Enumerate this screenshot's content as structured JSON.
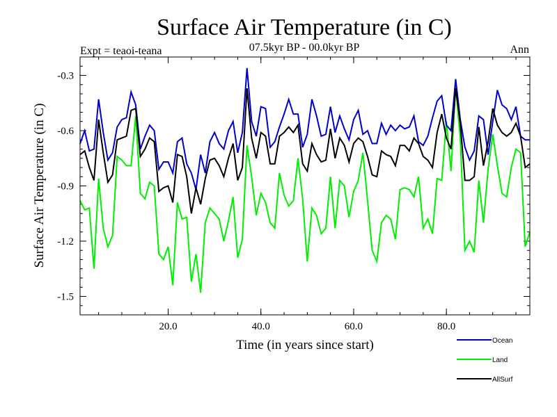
{
  "chart_data": {
    "type": "line",
    "title": "Surface Air Temperature (in C)",
    "subtitle": "07.5kyr BP - 00.0kyr BP",
    "left_label": "Expt = teaoi-teana",
    "right_label": "Ann",
    "xlabel": "Time (in years since start)",
    "ylabel": "Surface Air Temperature (in C)",
    "xlim": [
      1,
      98
    ],
    "ylim": [
      -1.6,
      -0.2
    ],
    "xticks": [
      20,
      40,
      60,
      80
    ],
    "xtick_labels": [
      "20.0",
      "40.0",
      "60.0",
      "80.0"
    ],
    "yticks": [
      -1.5,
      -1.2,
      -0.9,
      -0.6,
      -0.3
    ],
    "ytick_labels": [
      "-1.5",
      "-1.2",
      "-0.9",
      "-0.6",
      "-0.3"
    ],
    "legend_position": "bottom-right",
    "series": [
      {
        "name": "Ocean",
        "color": "#0000cc",
        "values": [
          -0.67,
          -0.6,
          -0.71,
          -0.7,
          -0.43,
          -0.61,
          -0.76,
          -0.72,
          -0.58,
          -0.54,
          -0.53,
          -0.39,
          -0.46,
          -0.7,
          -0.63,
          -0.57,
          -0.6,
          -0.81,
          -0.77,
          -0.77,
          -0.83,
          -0.66,
          -0.64,
          -0.78,
          -0.83,
          -0.92,
          -0.73,
          -0.83,
          -0.66,
          -0.61,
          -0.67,
          -0.7,
          -0.6,
          -0.55,
          -0.72,
          -0.61,
          -0.26,
          -0.55,
          -0.63,
          -0.47,
          -0.48,
          -0.69,
          -0.66,
          -0.58,
          -0.51,
          -0.43,
          -0.51,
          -0.51,
          -0.69,
          -0.62,
          -0.43,
          -0.52,
          -0.63,
          -0.62,
          -0.47,
          -0.61,
          -0.52,
          -0.59,
          -0.65,
          -0.54,
          -0.49,
          -0.62,
          -0.6,
          -0.67,
          -0.67,
          -0.56,
          -0.62,
          -0.57,
          -0.6,
          -0.57,
          -0.59,
          -0.58,
          -0.52,
          -0.66,
          -0.68,
          -0.63,
          -0.53,
          -0.44,
          -0.41,
          -0.57,
          -0.6,
          -0.32,
          -0.54,
          -0.69,
          -0.76,
          -0.71,
          -0.52,
          -0.54,
          -0.73,
          -0.55,
          -0.38,
          -0.46,
          -0.48,
          -0.54,
          -0.47,
          -0.63,
          -0.65,
          -0.65
        ]
      },
      {
        "name": "Land",
        "color": "#00ee00",
        "values": [
          -0.98,
          -1.03,
          -1.02,
          -1.35,
          -0.86,
          -1.13,
          -1.23,
          -1.17,
          -0.74,
          -0.76,
          -0.79,
          -0.79,
          -0.52,
          -0.94,
          -0.97,
          -0.88,
          -0.9,
          -1.27,
          -1.3,
          -1.23,
          -1.44,
          -0.99,
          -1.08,
          -1.07,
          -1.42,
          -1.27,
          -1.48,
          -1.1,
          -1.02,
          -1.05,
          -1.08,
          -1.2,
          -1.09,
          -0.96,
          -1.29,
          -1.19,
          -0.68,
          -0.85,
          -1.06,
          -0.94,
          -0.99,
          -1.1,
          -1.13,
          -0.83,
          -0.95,
          -1.01,
          -0.98,
          -0.75,
          -0.97,
          -1.31,
          -1.02,
          -1.06,
          -1.16,
          -1.13,
          -0.85,
          -1.13,
          -0.87,
          -0.9,
          -1.07,
          -0.93,
          -0.87,
          -0.72,
          -0.98,
          -1.25,
          -1.31,
          -1.1,
          -1.06,
          -1.08,
          -1.19,
          -0.92,
          -0.91,
          -0.92,
          -0.96,
          -0.85,
          -1.13,
          -1.08,
          -1.16,
          -0.86,
          -0.87,
          -0.55,
          -0.82,
          -0.36,
          -0.64,
          -1.25,
          -1.2,
          -1.26,
          -0.87,
          -1.1,
          -0.81,
          -0.62,
          -0.79,
          -0.94,
          -0.96,
          -0.8,
          -0.7,
          -0.72,
          -1.23,
          -1.15
        ]
      },
      {
        "name": "AllSurf",
        "color": "#000000",
        "values": [
          -0.73,
          -0.71,
          -0.8,
          -0.87,
          -0.54,
          -0.72,
          -0.88,
          -0.84,
          -0.65,
          -0.64,
          -0.63,
          -0.49,
          -0.48,
          -0.74,
          -0.7,
          -0.64,
          -0.66,
          -0.93,
          -0.91,
          -0.9,
          -0.99,
          -0.73,
          -0.74,
          -0.85,
          -1.05,
          -0.91,
          -1.0,
          -0.86,
          -0.76,
          -0.75,
          -0.79,
          -0.85,
          -0.75,
          -0.67,
          -0.87,
          -0.8,
          -0.37,
          -0.64,
          -0.75,
          -0.61,
          -0.63,
          -0.78,
          -0.78,
          -0.63,
          -0.61,
          -0.58,
          -0.61,
          -0.57,
          -0.78,
          -0.82,
          -0.67,
          -0.73,
          -0.77,
          -0.76,
          -0.59,
          -0.75,
          -0.64,
          -0.68,
          -0.77,
          -0.67,
          -0.64,
          -0.66,
          -0.74,
          -0.84,
          -0.85,
          -0.71,
          -0.73,
          -0.74,
          -0.79,
          -0.68,
          -0.68,
          -0.71,
          -0.64,
          -0.67,
          -0.74,
          -0.76,
          -0.8,
          -0.61,
          -0.51,
          -0.64,
          -0.7,
          -0.37,
          -0.56,
          -0.87,
          -0.87,
          -0.85,
          -0.58,
          -0.79,
          -0.66,
          -0.48,
          -0.57,
          -0.61,
          -0.63,
          -0.61,
          -0.56,
          -0.63,
          -0.8,
          -0.78
        ]
      }
    ]
  }
}
